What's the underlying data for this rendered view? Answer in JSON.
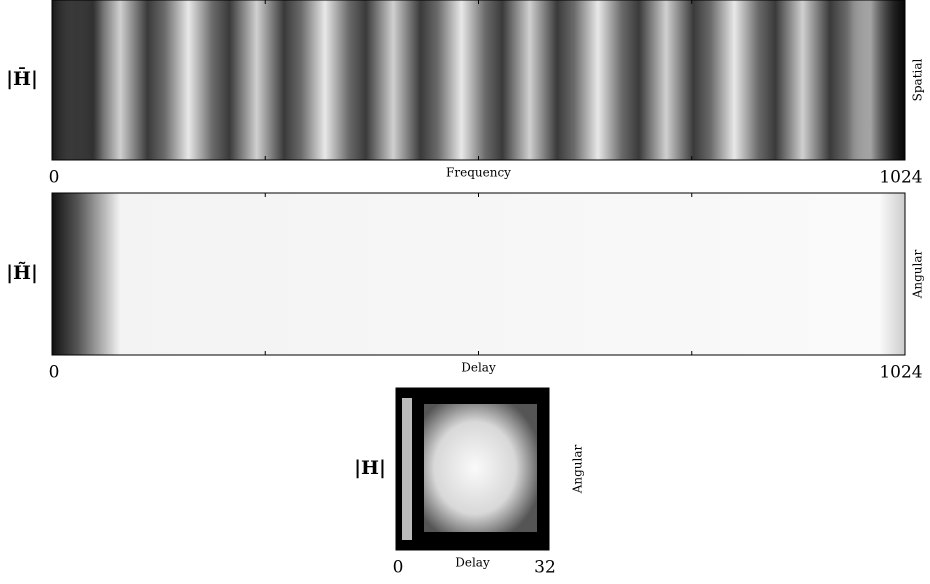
{
  "chart_data": [
    {
      "type": "heatmap",
      "ylabel": "|H̄|",
      "right_label": "Spatial",
      "xlabel": "Frequency",
      "xlim": [
        0,
        1024
      ],
      "xticks": [
        0,
        1024
      ]
    },
    {
      "type": "heatmap",
      "ylabel": "|H̃|",
      "right_label": "Angular",
      "xlabel": "Delay",
      "xlim": [
        0,
        1024
      ],
      "xticks": [
        0,
        1024
      ]
    },
    {
      "type": "heatmap",
      "ylabel": "|H|",
      "right_label": "Angular",
      "xlabel": "Delay",
      "xlim": [
        0,
        32
      ],
      "xticks": [
        0,
        32
      ]
    }
  ]
}
